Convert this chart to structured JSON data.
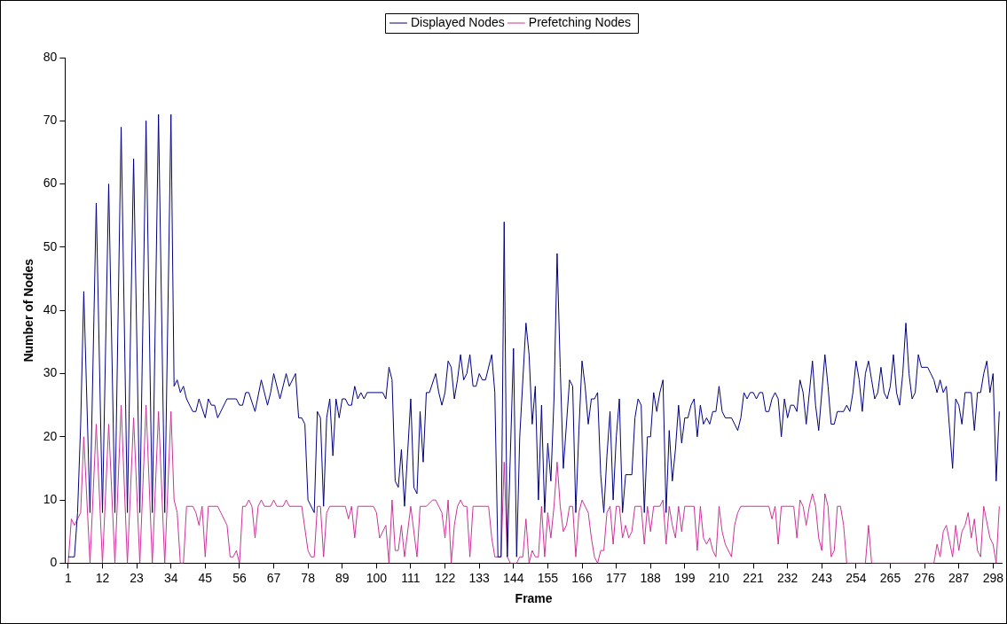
{
  "chart_data": {
    "type": "line",
    "xlabel": "Frame",
    "ylabel": "Number of Nodes",
    "legend": "top",
    "grid": false,
    "xlim": [
      0,
      301
    ],
    "xticks": [
      1,
      12,
      23,
      34,
      45,
      56,
      67,
      78,
      89,
      100,
      111,
      122,
      133,
      144,
      155,
      166,
      177,
      188,
      199,
      210,
      221,
      232,
      243,
      254,
      265,
      276,
      287,
      298
    ],
    "ylim": [
      0,
      80
    ],
    "yticks": [
      0,
      10,
      20,
      30,
      40,
      50,
      60,
      70,
      80
    ],
    "series": [
      {
        "name": "Displayed Nodes",
        "color": "#000080",
        "x": [
          1,
          2,
          3,
          4,
          5,
          6,
          8,
          10,
          12,
          14,
          16,
          18,
          20,
          22,
          24,
          26,
          28,
          30,
          32,
          34,
          35,
          36,
          37,
          38,
          39,
          40,
          41,
          42,
          43,
          45,
          46,
          47,
          48,
          49,
          52,
          55,
          56,
          57,
          58,
          59,
          61,
          63,
          65,
          66,
          67,
          69,
          71,
          72,
          74,
          75,
          76,
          77,
          78,
          80,
          81,
          82,
          83,
          84,
          85,
          86,
          87,
          88,
          89,
          90,
          91,
          92,
          93,
          94,
          95,
          96,
          97,
          102,
          103,
          104,
          105,
          106,
          107,
          108,
          109,
          111,
          112,
          113,
          114,
          115,
          116,
          117,
          119,
          120,
          121,
          122,
          123,
          124,
          125,
          126,
          127,
          128,
          129,
          130,
          131,
          132,
          133,
          134,
          135,
          137,
          138,
          139,
          140,
          141,
          142,
          144,
          145,
          146,
          148,
          149,
          150,
          151,
          152,
          153,
          154,
          155,
          156,
          157,
          158,
          159,
          160,
          162,
          163,
          164,
          165,
          166,
          167,
          168,
          169,
          170,
          171,
          172,
          173,
          174,
          175,
          176,
          177,
          178,
          179,
          180,
          182,
          183,
          184,
          185,
          186,
          187,
          188,
          189,
          190,
          191,
          192,
          193,
          194,
          195,
          196,
          197,
          198,
          199,
          200,
          201,
          202,
          203,
          204,
          205,
          206,
          207,
          208,
          209,
          210,
          211,
          212,
          214,
          215,
          216,
          217,
          218,
          219,
          220,
          221,
          222,
          223,
          224,
          225,
          226,
          227,
          228,
          229,
          230,
          231,
          232,
          233,
          234,
          235,
          236,
          237,
          238,
          239,
          240,
          241,
          242,
          244,
          245,
          246,
          247,
          248,
          249,
          250,
          251,
          252,
          253,
          254,
          255,
          256,
          257,
          258,
          259,
          260,
          261,
          262,
          263,
          264,
          265,
          266,
          267,
          268,
          269,
          270,
          271,
          272,
          273,
          274,
          275,
          277,
          278,
          279,
          280,
          281,
          282,
          283,
          285,
          286,
          287,
          288,
          289,
          291,
          292,
          293,
          294,
          295,
          296,
          297,
          298,
          299,
          300
        ],
        "values": [
          1,
          1,
          1,
          8,
          22,
          43,
          8,
          57,
          8,
          60,
          8,
          69,
          8,
          64,
          8,
          70,
          8,
          71,
          8,
          71,
          28,
          29,
          27,
          28,
          26,
          25,
          24,
          24,
          26,
          23,
          26,
          25,
          25,
          23,
          26,
          26,
          25,
          25,
          27,
          27,
          24,
          29,
          25,
          27,
          30,
          26,
          30,
          28,
          30,
          23,
          23,
          22,
          10,
          8,
          24,
          23,
          9,
          23,
          26,
          17,
          26,
          23,
          26,
          26,
          25,
          25,
          28,
          26,
          27,
          26,
          27,
          27,
          26,
          31,
          29,
          13,
          12,
          18,
          9,
          26,
          12,
          11,
          24,
          16,
          27,
          27,
          30,
          27,
          25,
          27,
          32,
          31,
          26,
          29,
          33,
          29,
          30,
          33,
          28,
          28,
          30,
          29,
          29,
          33,
          27,
          1,
          1,
          54,
          1,
          34,
          1,
          20,
          38,
          33,
          22,
          28,
          10,
          25,
          8,
          19,
          13,
          26,
          49,
          31,
          15,
          29,
          28,
          8,
          21,
          32,
          28,
          22,
          26,
          26,
          27,
          14,
          8,
          17,
          24,
          10,
          20,
          26,
          8,
          14,
          14,
          23,
          26,
          25,
          8,
          20,
          20,
          27,
          24,
          27,
          29,
          8,
          21,
          13,
          18,
          25,
          19,
          23,
          23,
          25,
          26,
          20,
          25,
          22,
          23,
          22,
          24,
          24,
          28,
          24,
          23,
          23,
          22,
          21,
          23,
          27,
          26,
          27,
          27,
          26,
          27,
          27,
          24,
          24,
          26,
          27,
          26,
          20,
          26,
          23,
          25,
          25,
          24,
          29,
          27,
          22,
          27,
          32,
          25,
          21,
          33,
          28,
          22,
          22,
          24,
          24,
          24,
          25,
          24,
          27,
          32,
          29,
          24,
          30,
          32,
          29,
          26,
          27,
          31,
          27,
          26,
          28,
          33,
          27,
          25,
          30,
          38,
          30,
          26,
          27,
          33,
          31,
          31,
          30,
          29,
          27,
          29,
          27,
          28,
          15,
          26,
          25,
          22,
          27,
          27,
          21,
          27,
          27,
          30,
          32,
          27,
          30,
          13,
          24
        ]
      },
      {
        "name": "Prefetching Nodes",
        "color": "#cc3399",
        "x": [
          1,
          2,
          3,
          4,
          5,
          6,
          8,
          10,
          12,
          14,
          16,
          18,
          20,
          22,
          24,
          26,
          28,
          30,
          32,
          34,
          35,
          36,
          37,
          38,
          39,
          41,
          42,
          43,
          44,
          45,
          46,
          49,
          50,
          52,
          53,
          54,
          55,
          56,
          57,
          58,
          59,
          60,
          61,
          62,
          63,
          64,
          66,
          67,
          68,
          70,
          71,
          72,
          76,
          78,
          79,
          80,
          81,
          82,
          83,
          84,
          85,
          90,
          91,
          92,
          93,
          94,
          99,
          100,
          101,
          103,
          104,
          105,
          106,
          107,
          108,
          109,
          111,
          113,
          114,
          116,
          118,
          119,
          120,
          121,
          122,
          123,
          124,
          125,
          126,
          127,
          128,
          129,
          130,
          131,
          136,
          137,
          138,
          140,
          141,
          142,
          143,
          145,
          146,
          147,
          148,
          149,
          150,
          151,
          152,
          153,
          154,
          155,
          156,
          157,
          158,
          159,
          160,
          161,
          162,
          163,
          164,
          165,
          166,
          168,
          169,
          170,
          171,
          172,
          173,
          174,
          175,
          176,
          177,
          178,
          179,
          180,
          181,
          182,
          183,
          185,
          186,
          187,
          188,
          189,
          191,
          192,
          193,
          194,
          195,
          196,
          197,
          198,
          199,
          202,
          203,
          204,
          205,
          206,
          207,
          208,
          209,
          210,
          211,
          212,
          214,
          215,
          216,
          217,
          226,
          227,
          228,
          229,
          230,
          234,
          235,
          236,
          237,
          238,
          239,
          240,
          241,
          242,
          243,
          244,
          245,
          246,
          247,
          248,
          249,
          250,
          251,
          257,
          258,
          259,
          279,
          280,
          281,
          282,
          283,
          285,
          286,
          287,
          288,
          289,
          290,
          291,
          292,
          293,
          294,
          295,
          297,
          298,
          299,
          300
        ],
        "values": [
          0,
          7,
          6,
          7,
          8,
          20,
          0,
          22,
          0,
          22,
          0,
          25,
          0,
          23,
          0,
          25,
          0,
          24,
          0,
          24,
          10,
          8,
          0,
          0,
          9,
          9,
          8,
          6,
          9,
          1,
          9,
          9,
          8,
          6,
          1,
          1,
          2,
          0,
          9,
          9,
          10,
          9,
          4,
          9,
          10,
          9,
          9,
          10,
          9,
          9,
          10,
          9,
          9,
          2,
          1,
          1,
          9,
          9,
          1,
          8,
          9,
          9,
          7,
          9,
          4,
          9,
          9,
          8,
          4,
          6,
          0,
          10,
          2,
          2,
          6,
          1,
          9,
          1,
          9,
          9,
          10,
          10,
          9,
          8,
          4,
          10,
          0,
          6,
          9,
          10,
          9,
          9,
          1,
          9,
          9,
          4,
          1,
          1,
          16,
          1,
          0,
          0,
          1,
          1,
          7,
          0,
          2,
          1,
          1,
          9,
          1,
          8,
          4,
          9,
          16,
          9,
          5,
          6,
          9,
          9,
          1,
          8,
          10,
          8,
          4,
          1,
          0,
          2,
          2,
          8,
          9,
          3,
          9,
          9,
          4,
          6,
          4,
          5,
          9,
          9,
          3,
          9,
          5,
          9,
          9,
          10,
          3,
          9,
          6,
          4,
          9,
          5,
          9,
          9,
          2,
          9,
          4,
          3,
          4,
          2,
          1,
          9,
          5,
          3,
          1,
          6,
          8,
          9,
          9,
          7,
          9,
          3,
          9,
          9,
          4,
          10,
          9,
          6,
          9,
          11,
          9,
          4,
          2,
          11,
          9,
          1,
          2,
          9,
          9,
          6,
          0,
          0,
          6,
          0,
          0,
          3,
          1,
          5,
          6,
          1,
          6,
          2,
          5,
          6,
          8,
          4,
          7,
          2,
          1,
          9,
          4,
          3,
          0,
          9
        ]
      }
    ]
  }
}
